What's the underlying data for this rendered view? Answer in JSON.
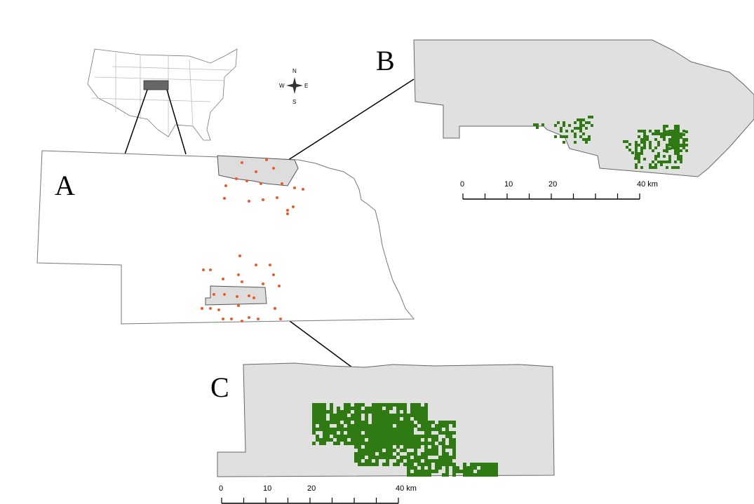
{
  "panels": {
    "a": "A",
    "b": "B",
    "c": "C"
  },
  "compass": {
    "n": "N",
    "e": "E",
    "s": "S",
    "w": "W"
  },
  "scale_b": [
    "0",
    "10",
    "20",
    "40 km"
  ],
  "scale_c": [
    "0",
    "10",
    "20",
    "40 km"
  ]
}
